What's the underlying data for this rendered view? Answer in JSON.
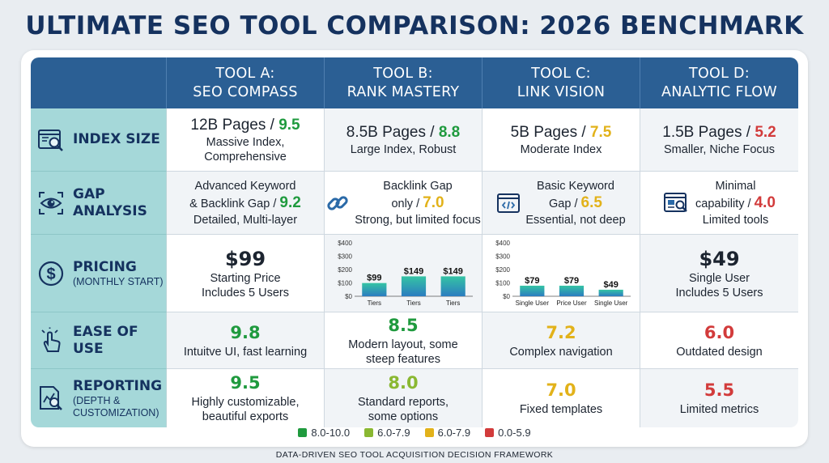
{
  "title": "ULTIMATE SEO TOOL COMPARISON: 2026 BENCHMARK",
  "colors": {
    "header": "#2b5f94",
    "label_bg": "#a5d8d9",
    "green": "#1f9a3e",
    "yellow": "#e2b21a",
    "red": "#d23b3b",
    "bar_top": "#35c4a4",
    "bar_bottom": "#2b7cc0"
  },
  "tools": [
    {
      "line1": "TOOL A:",
      "line2": "SEO COMPASS"
    },
    {
      "line1": "TOOL B:",
      "line2": "RANK MASTERY"
    },
    {
      "line1": "TOOL C:",
      "line2": "LINK VISION"
    },
    {
      "line1": "TOOL D:",
      "line2": "ANALYTIC FLOW"
    }
  ],
  "rows": {
    "index": {
      "label": "INDEX SIZE",
      "icon": "search-browser-icon",
      "cells": [
        {
          "main": "12B Pages / ",
          "score": "9.5",
          "desc": "Massive Index, Comprehensive"
        },
        {
          "main": "8.5B Pages / ",
          "score": "8.8",
          "desc": "Large Index, Robust"
        },
        {
          "main": "5B Pages / ",
          "score": "7.5",
          "desc": "Moderate Index"
        },
        {
          "main": "1.5B Pages / ",
          "score": "5.2",
          "desc": "Smaller, Niche Focus"
        }
      ]
    },
    "gap": {
      "label1": "GAP",
      "label2": "ANALYSIS",
      "icon": "eye-scan-icon",
      "cells": [
        {
          "line1": "Advanced Keyword",
          "line2": "& Backlink Gap / ",
          "score": "9.2",
          "desc": "Detailed, Multi-layer",
          "icon": ""
        },
        {
          "line1": "Backlink Gap",
          "line2": "only / ",
          "score": "7.0",
          "desc": "Strong, but limited focus",
          "icon": "chain-link-icon"
        },
        {
          "line1": "Basic Keyword",
          "line2": "Gap / ",
          "score": "6.5",
          "desc": "Essential, not deep",
          "icon": "code-window-icon"
        },
        {
          "line1": "Minimal",
          "line2": "capability / ",
          "score": "4.0",
          "desc": "Limited tools",
          "icon": "report-window-icon"
        }
      ]
    },
    "pricing": {
      "label": "PRICING",
      "sub": "(MONTHLY START)",
      "icon": "dollar-coin-icon",
      "a": {
        "price": "$99",
        "l1": "Starting Price",
        "l2": "Includes 5 Users"
      },
      "b_chart": {
        "type": "bar",
        "categories": [
          "Tiers",
          "Tiers",
          "Tiers"
        ],
        "values": [
          99,
          149,
          149
        ],
        "labels": [
          "$99",
          "$149",
          "$149"
        ],
        "yticks": [
          "$400",
          "$300",
          "$200",
          "$100",
          "$0"
        ],
        "ylim": [
          0,
          400
        ]
      },
      "c_chart": {
        "type": "bar",
        "categories": [
          "Single User",
          "Price User",
          "Single User"
        ],
        "values": [
          79,
          79,
          49
        ],
        "labels": [
          "$79",
          "$79",
          "$49"
        ],
        "yticks": [
          "$400",
          "$300",
          "$200",
          "$100",
          "$0"
        ],
        "ylim": [
          0,
          400
        ]
      },
      "d": {
        "price": "$49",
        "l1": "Single User",
        "l2": "Includes 5 Users"
      }
    },
    "ease": {
      "label": "EASE OF USE",
      "icon": "pointer-hand-icon",
      "cells": [
        {
          "score": "9.8",
          "l1": "Intuitve UI, fast learning",
          "l2": ""
        },
        {
          "score": "8.5",
          "l1": "Modern layout, some",
          "l2": "steep features"
        },
        {
          "score": "7.2",
          "l1": "Complex navigation",
          "l2": ""
        },
        {
          "score": "6.0",
          "l1": "Outdated design",
          "l2": ""
        }
      ]
    },
    "reporting": {
      "label": "REPORTING",
      "sub1": "(DEPTH &",
      "sub2": "CUSTOMIZATION)",
      "icon": "report-magnifier-icon",
      "cells": [
        {
          "score": "9.5",
          "l1": "Highly customizable,",
          "l2": "beautiful exports"
        },
        {
          "score": "8.0",
          "l1": "Standard reports,",
          "l2": "some options"
        },
        {
          "score": "7.0",
          "l1": "Fixed templates",
          "l2": ""
        },
        {
          "score": "5.5",
          "l1": "Limited metrics",
          "l2": ""
        }
      ]
    }
  },
  "legend": [
    {
      "label": "8.0-10.0",
      "color": "#1f9a3e"
    },
    {
      "label": "6.0-7.9",
      "color": "#8ab832"
    },
    {
      "label": "6.0-7.9",
      "color": "#e2b21a"
    },
    {
      "label": "0.0-5.9",
      "color": "#d23b3b"
    }
  ],
  "footer": "DATA-DRIVEN SEO TOOL ACQUISITION DECISION FRAMEWORK"
}
